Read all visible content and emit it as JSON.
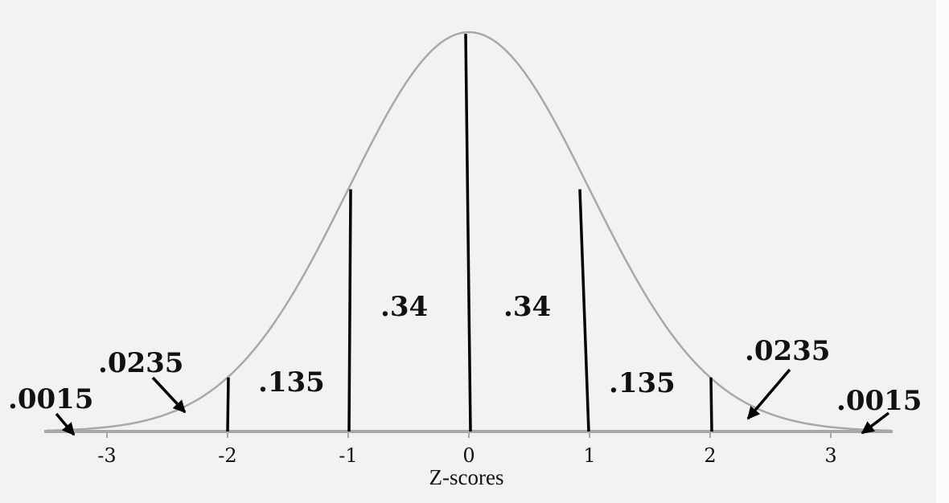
{
  "chart_data": {
    "type": "area",
    "xlabel": "Z-scores",
    "xlim": [
      -3.5,
      3.5
    ],
    "x_ticks": [
      "-3",
      "-2",
      "-1",
      "0",
      "1",
      "2",
      "3"
    ],
    "x_tick_values": [
      -3,
      -2,
      -1,
      0,
      1,
      2,
      3
    ],
    "divider_z": [
      -2,
      -1,
      0,
      1,
      2
    ],
    "regions": [
      {
        "from": null,
        "to": -3,
        "area_label": ".0015"
      },
      {
        "from": -3,
        "to": -2,
        "area_label": ".0235"
      },
      {
        "from": -2,
        "to": -1,
        "area_label": ".135"
      },
      {
        "from": -1,
        "to": 0,
        "area_label": ".34"
      },
      {
        "from": 0,
        "to": 1,
        "area_label": ".34"
      },
      {
        "from": 1,
        "to": 2,
        "area_label": ".135"
      },
      {
        "from": 2,
        "to": 3,
        "area_label": ".0235"
      },
      {
        "from": 3,
        "to": null,
        "area_label": ".0015"
      }
    ],
    "colors": {
      "curve": "#a8a8a8",
      "axis": "#a8a8a8",
      "dividers": "#000000",
      "text": "#111111"
    }
  }
}
